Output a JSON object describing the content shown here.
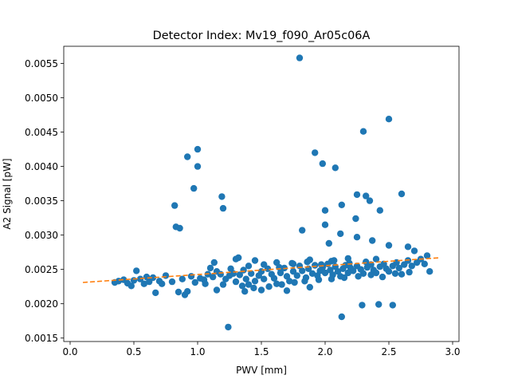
{
  "chart_data": {
    "type": "scatter",
    "title": "Detector Index: Mv19_f090_Ar05c06A",
    "xlabel": "PWV [mm]",
    "ylabel": "A2 Signal [pW]",
    "xlim": [
      -0.05,
      3.05
    ],
    "ylim": [
      0.00145,
      0.00575
    ],
    "xticks": [
      0.0,
      0.5,
      1.0,
      1.5,
      2.0,
      2.5,
      3.0
    ],
    "xtick_labels": [
      "0.0",
      "0.5",
      "1.0",
      "1.5",
      "2.0",
      "2.5",
      "3.0"
    ],
    "yticks": [
      0.0015,
      0.002,
      0.0025,
      0.003,
      0.0035,
      0.004,
      0.0045,
      0.005,
      0.0055
    ],
    "ytick_labels": [
      "0.0015",
      "0.0020",
      "0.0025",
      "0.0030",
      "0.0035",
      "0.0040",
      "0.0045",
      "0.0050",
      "0.0055"
    ],
    "grid": false,
    "series": [
      {
        "name": "data",
        "kind": "scatter",
        "color": "#1f77b4",
        "points": [
          [
            1.8,
            0.00558
          ],
          [
            2.5,
            0.00469
          ],
          [
            2.3,
            0.00451
          ],
          [
            1.0,
            0.00425
          ],
          [
            1.92,
            0.0042
          ],
          [
            0.92,
            0.00414
          ],
          [
            1.98,
            0.00404
          ],
          [
            1.0,
            0.004
          ],
          [
            2.08,
            0.00398
          ],
          [
            0.97,
            0.00368
          ],
          [
            2.25,
            0.00359
          ],
          [
            2.32,
            0.00357
          ],
          [
            2.6,
            0.0036
          ],
          [
            1.19,
            0.00356
          ],
          [
            2.35,
            0.0035
          ],
          [
            0.82,
            0.00343
          ],
          [
            2.13,
            0.00344
          ],
          [
            1.2,
            0.00339
          ],
          [
            2.0,
            0.00336
          ],
          [
            2.43,
            0.00336
          ],
          [
            2.24,
            0.00324
          ],
          [
            2.0,
            0.00315
          ],
          [
            0.83,
            0.00312
          ],
          [
            0.86,
            0.0031
          ],
          [
            1.82,
            0.00307
          ],
          [
            2.12,
            0.00302
          ],
          [
            2.25,
            0.00297
          ],
          [
            2.37,
            0.00292
          ],
          [
            2.03,
            0.00288
          ],
          [
            2.5,
            0.00285
          ],
          [
            0.52,
            0.00248
          ],
          [
            0.85,
            0.00217
          ],
          [
            0.92,
            0.00218
          ],
          [
            0.9,
            0.00213
          ],
          [
            0.67,
            0.00216
          ],
          [
            1.24,
            0.00166
          ],
          [
            2.13,
            0.00181
          ],
          [
            2.29,
            0.00198
          ],
          [
            2.42,
            0.00199
          ],
          [
            2.53,
            0.00198
          ],
          [
            1.15,
            0.0022
          ],
          [
            1.37,
            0.00218
          ],
          [
            1.5,
            0.0022
          ],
          [
            1.7,
            0.00219
          ],
          [
            1.88,
            0.00224
          ],
          [
            1.32,
            0.00267
          ],
          [
            1.3,
            0.00265
          ],
          [
            1.45,
            0.00263
          ],
          [
            1.62,
            0.0026
          ],
          [
            1.75,
            0.00258
          ],
          [
            1.13,
            0.0026
          ],
          [
            1.88,
            0.00264
          ],
          [
            2.05,
            0.00262
          ],
          [
            2.18,
            0.00266
          ],
          [
            2.4,
            0.00265
          ],
          [
            2.65,
            0.00283
          ],
          [
            2.7,
            0.00277
          ],
          [
            2.8,
            0.0027
          ],
          [
            2.82,
            0.00247
          ],
          [
            2.6,
            0.00243
          ],
          [
            0.35,
            0.00231
          ],
          [
            0.38,
            0.00233
          ],
          [
            0.42,
            0.00235
          ],
          [
            0.45,
            0.0023
          ],
          [
            0.5,
            0.00234
          ],
          [
            0.55,
            0.00236
          ],
          [
            0.58,
            0.00229
          ],
          [
            0.6,
            0.00239
          ],
          [
            0.65,
            0.00238
          ],
          [
            0.7,
            0.00233
          ],
          [
            0.75,
            0.00241
          ],
          [
            0.8,
            0.00232
          ],
          [
            0.88,
            0.00236
          ],
          [
            0.95,
            0.0024
          ],
          [
            1.02,
            0.00237
          ],
          [
            1.05,
            0.00235
          ],
          [
            1.08,
            0.00243
          ],
          [
            1.1,
            0.00252
          ],
          [
            1.12,
            0.00239
          ],
          [
            1.15,
            0.00247
          ],
          [
            1.18,
            0.00243
          ],
          [
            1.22,
            0.00236
          ],
          [
            1.25,
            0.00241
          ],
          [
            1.28,
            0.00244
          ],
          [
            1.3,
            0.00232
          ],
          [
            1.33,
            0.00242
          ],
          [
            1.36,
            0.00249
          ],
          [
            1.38,
            0.00236
          ],
          [
            1.4,
            0.00228
          ],
          [
            1.42,
            0.00244
          ],
          [
            1.45,
            0.00233
          ],
          [
            1.48,
            0.00241
          ],
          [
            1.5,
            0.00247
          ],
          [
            1.52,
            0.00236
          ],
          [
            1.55,
            0.00251
          ],
          [
            1.58,
            0.00243
          ],
          [
            1.6,
            0.00237
          ],
          [
            1.62,
            0.00229
          ],
          [
            1.65,
            0.00245
          ],
          [
            1.68,
            0.00252
          ],
          [
            1.7,
            0.0024
          ],
          [
            1.72,
            0.00233
          ],
          [
            1.75,
            0.00247
          ],
          [
            1.78,
            0.00241
          ],
          [
            1.8,
            0.00255
          ],
          [
            1.82,
            0.00248
          ],
          [
            1.85,
            0.00238
          ],
          [
            1.87,
            0.00251
          ],
          [
            1.9,
            0.00244
          ],
          [
            1.92,
            0.00256
          ],
          [
            1.94,
            0.00241
          ],
          [
            1.96,
            0.00248
          ],
          [
            1.98,
            0.00253
          ],
          [
            2.0,
            0.00245
          ],
          [
            2.02,
            0.00258
          ],
          [
            2.04,
            0.00249
          ],
          [
            2.06,
            0.00242
          ],
          [
            2.08,
            0.00254
          ],
          [
            2.1,
            0.00247
          ],
          [
            2.12,
            0.0024
          ],
          [
            2.14,
            0.00251
          ],
          [
            2.16,
            0.00256
          ],
          [
            2.18,
            0.00245
          ],
          [
            2.2,
            0.00252
          ],
          [
            2.22,
            0.00248
          ],
          [
            2.25,
            0.00255
          ],
          [
            2.28,
            0.0025
          ],
          [
            2.3,
            0.00244
          ],
          [
            2.33,
            0.00253
          ],
          [
            2.36,
            0.00257
          ],
          [
            2.38,
            0.00249
          ],
          [
            2.4,
            0.00245
          ],
          [
            2.43,
            0.00254
          ],
          [
            2.46,
            0.00258
          ],
          [
            2.48,
            0.00251
          ],
          [
            2.5,
            0.00247
          ],
          [
            2.53,
            0.00255
          ],
          [
            2.56,
            0.0026
          ],
          [
            2.58,
            0.00252
          ],
          [
            2.62,
            0.00257
          ],
          [
            2.65,
            0.00263
          ],
          [
            2.68,
            0.00255
          ],
          [
            2.72,
            0.0026
          ],
          [
            2.75,
            0.00265
          ],
          [
            2.78,
            0.00258
          ],
          [
            0.48,
            0.00226
          ],
          [
            0.62,
            0.00232
          ],
          [
            0.72,
            0.00229
          ],
          [
            0.98,
            0.00231
          ],
          [
            1.06,
            0.00229
          ],
          [
            1.2,
            0.00228
          ],
          [
            1.35,
            0.00226
          ],
          [
            1.44,
            0.00223
          ],
          [
            1.56,
            0.00225
          ],
          [
            1.66,
            0.00228
          ],
          [
            1.76,
            0.00231
          ],
          [
            1.84,
            0.00233
          ],
          [
            1.95,
            0.00235
          ],
          [
            2.05,
            0.00236
          ],
          [
            2.15,
            0.00238
          ],
          [
            2.26,
            0.0024
          ],
          [
            2.36,
            0.00242
          ],
          [
            2.45,
            0.00239
          ],
          [
            2.55,
            0.00244
          ],
          [
            2.66,
            0.00246
          ],
          [
            1.26,
            0.00251
          ],
          [
            1.4,
            0.00255
          ],
          [
            1.52,
            0.00257
          ],
          [
            1.64,
            0.00253
          ],
          [
            1.74,
            0.00259
          ],
          [
            1.86,
            0.00261
          ],
          [
            1.97,
            0.00257
          ],
          [
            2.07,
            0.00263
          ],
          [
            2.19,
            0.00259
          ],
          [
            2.32,
            0.00261
          ]
        ]
      },
      {
        "name": "fit",
        "kind": "line",
        "color": "#ff7f0e",
        "style": "dashed",
        "x": [
          0.1,
          2.9
        ],
        "y": [
          0.00231,
          0.00267
        ]
      }
    ]
  }
}
